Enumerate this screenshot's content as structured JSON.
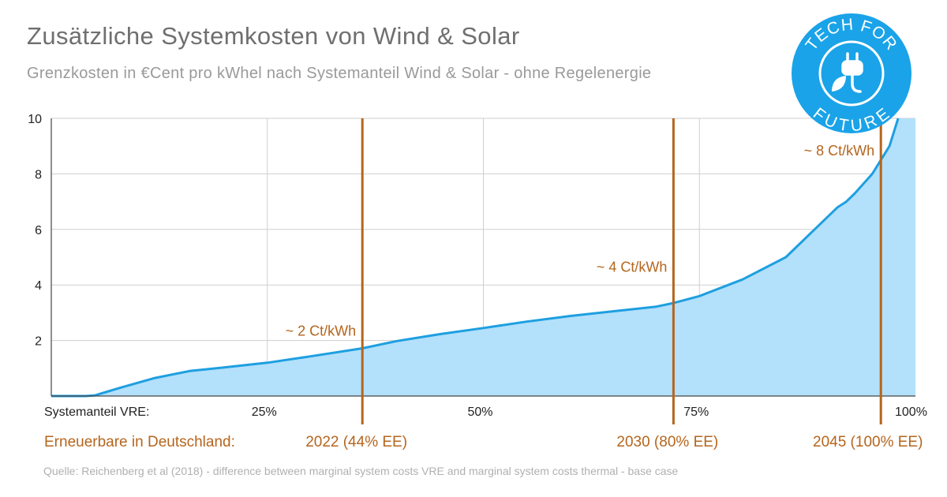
{
  "title": "Zusätzliche Systemkosten von Wind & Solar",
  "subtitle": "Grenzkosten in €Cent pro kWhel nach Systemanteil Wind & Solar - ohne Regelenergie",
  "source": "Quelle: Reichenberg et al (2018) - difference between marginal system costs VRE and marginal system costs thermal - base case",
  "logo": {
    "text_top": "TECH FOR",
    "text_bottom": "FUTURE",
    "color": "#1aa3e8"
  },
  "colors": {
    "area_fill": "#b3e0fb",
    "line": "#1e9fe0",
    "marker": "#b5651d",
    "grid": "#cfcfcf"
  },
  "chart_data": {
    "type": "area",
    "xlabel": "Systemanteil VRE:",
    "x_tick_labels": [
      "25%",
      "50%",
      "75%",
      "100%"
    ],
    "x_ticks": [
      25,
      50,
      75,
      100
    ],
    "xlim": [
      0,
      100
    ],
    "ylim": [
      0,
      10
    ],
    "y_ticks": [
      2,
      4,
      6,
      8,
      10
    ],
    "grid": true,
    "series": [
      {
        "x": [
          0,
          4,
          5,
          8,
          12,
          16,
          20,
          25,
          30,
          36,
          40,
          45,
          50,
          55,
          60,
          65,
          70,
          72,
          75,
          80,
          85,
          88,
          91,
          92,
          93,
          95,
          97,
          98
        ],
        "values": [
          0,
          0,
          0.02,
          0.3,
          0.65,
          0.9,
          1.03,
          1.2,
          1.43,
          1.72,
          1.98,
          2.23,
          2.45,
          2.68,
          2.88,
          3.05,
          3.22,
          3.35,
          3.6,
          4.2,
          5.0,
          5.9,
          6.8,
          7.0,
          7.3,
          8.0,
          9.0,
          10.0
        ]
      }
    ],
    "annotations": [
      {
        "x": 36,
        "label": "~ 2 Ct/kWh",
        "value_y": 2.0,
        "bottom_label": "2022 (44% EE)"
      },
      {
        "x": 72,
        "label": "~ 4 Ct/kWh",
        "value_y": 4.3,
        "bottom_label": "2030 (80% EE)"
      },
      {
        "x": 96,
        "label": "~ 8 Ct/kWh",
        "value_y": 8.5,
        "bottom_label": "2045 (100% EE)"
      }
    ],
    "ee_label": "Erneuerbare in Deutschland:"
  }
}
